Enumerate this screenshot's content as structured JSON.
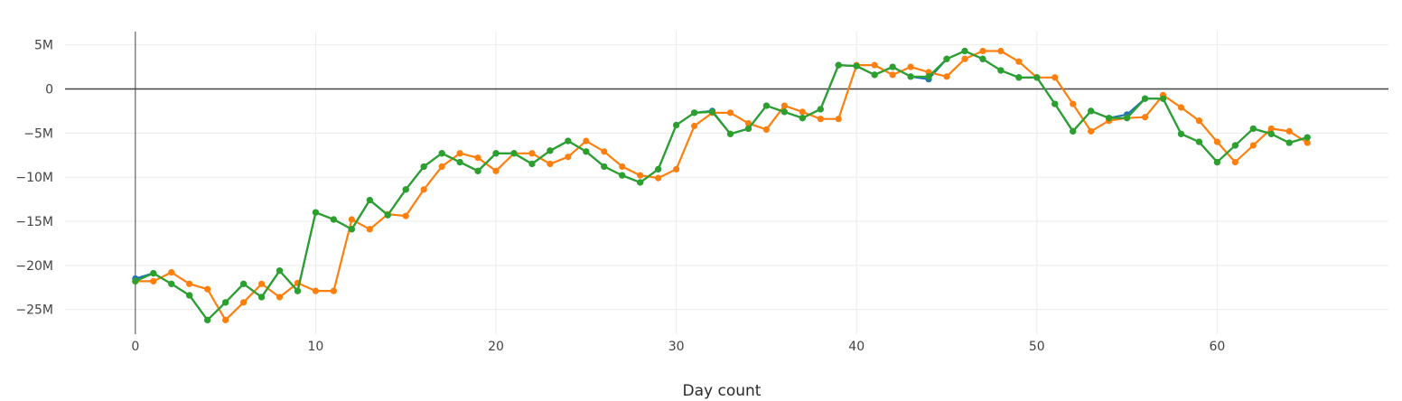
{
  "chart_data": {
    "type": "line",
    "title": "",
    "xlabel": "Day count",
    "ylabel": "",
    "xlim": [
      -3.9,
      69.5
    ],
    "ylim": [
      -27.8,
      6.5
    ],
    "x_ticks": [
      0,
      10,
      20,
      30,
      40,
      50,
      60
    ],
    "y_ticks": [
      5,
      0,
      -5,
      -10,
      -15,
      -20,
      -25
    ],
    "y_tick_labels": [
      "5M",
      "0",
      "−5M",
      "−10M",
      "−15M",
      "−20M",
      "−25M"
    ],
    "grid": true,
    "legend": "none",
    "series": [
      {
        "color": "#1f77b4",
        "x": [
          0,
          1,
          2,
          3,
          4,
          5,
          6,
          7,
          8,
          9,
          10,
          11,
          12,
          13,
          14,
          15,
          16,
          17,
          18,
          19,
          20,
          21,
          22,
          23,
          24,
          25,
          26,
          27,
          28,
          29,
          30,
          31,
          32,
          33,
          34,
          35,
          36,
          37,
          38,
          39,
          40,
          41,
          42,
          43,
          44,
          45,
          46,
          47,
          48,
          49,
          50,
          51,
          52,
          53,
          54,
          55,
          56,
          57,
          58,
          59,
          60,
          61,
          62,
          63,
          64,
          65
        ],
        "y": [
          -21.5,
          -20.9,
          -22.1,
          -23.4,
          -26.2,
          -24.2,
          -22.1,
          -23.6,
          -20.6,
          -22.9,
          -14.0,
          -14.8,
          -15.9,
          -12.6,
          -14.3,
          -11.4,
          -8.8,
          -7.3,
          -8.3,
          -9.3,
          -7.3,
          -7.3,
          -8.5,
          -7.0,
          -5.9,
          -7.1,
          -8.8,
          -9.8,
          -10.6,
          -9.1,
          -4.1,
          -2.7,
          -2.5,
          -5.1,
          -4.5,
          -1.9,
          -2.6,
          -3.3,
          -2.3,
          2.7,
          2.6,
          1.6,
          2.5,
          1.4,
          1.1,
          3.4,
          4.3,
          3.4,
          2.1,
          1.3,
          1.3,
          -1.7,
          -4.8,
          -2.5,
          -3.3,
          -2.9,
          -1.1,
          -1.1,
          -5.1,
          -6.0,
          -8.3,
          -6.4,
          -4.5,
          -5.1,
          -6.1,
          -5.5
        ]
      },
      {
        "color": "#ff7f0e",
        "x": [
          0,
          1,
          2,
          3,
          4,
          5,
          6,
          7,
          8,
          9,
          10,
          11,
          12,
          13,
          14,
          15,
          16,
          17,
          18,
          19,
          20,
          21,
          22,
          23,
          24,
          25,
          26,
          27,
          28,
          29,
          30,
          31,
          32,
          33,
          34,
          35,
          36,
          37,
          38,
          39,
          40,
          41,
          42,
          43,
          44,
          45,
          46,
          47,
          48,
          49,
          50,
          51,
          52,
          53,
          54,
          55,
          56,
          57,
          58,
          59,
          60,
          61,
          62,
          63,
          64,
          65
        ],
        "y": [
          -21.8,
          -21.8,
          -20.8,
          -22.1,
          -22.7,
          -26.2,
          -24.2,
          -22.1,
          -23.6,
          -22.0,
          -22.9,
          -22.9,
          -14.8,
          -15.9,
          -14.2,
          -14.4,
          -11.4,
          -8.8,
          -7.3,
          -7.8,
          -9.3,
          -7.3,
          -7.3,
          -8.5,
          -7.7,
          -5.9,
          -7.1,
          -8.8,
          -9.8,
          -10.1,
          -9.1,
          -4.2,
          -2.7,
          -2.7,
          -3.9,
          -4.6,
          -1.9,
          -2.6,
          -3.4,
          -3.4,
          2.7,
          2.7,
          1.6,
          2.5,
          1.9,
          1.4,
          3.4,
          4.3,
          4.3,
          3.1,
          1.3,
          1.3,
          -1.7,
          -4.8,
          -3.6,
          -3.3,
          -3.2,
          -0.7,
          -2.1,
          -3.6,
          -6.0,
          -8.3,
          -6.4,
          -4.5,
          -4.8,
          -6.1
        ]
      },
      {
        "color": "#2ca02c",
        "x": [
          0,
          1,
          2,
          3,
          4,
          5,
          6,
          7,
          8,
          9,
          10,
          11,
          12,
          13,
          14,
          15,
          16,
          17,
          18,
          19,
          20,
          21,
          22,
          23,
          24,
          25,
          26,
          27,
          28,
          29,
          30,
          31,
          32,
          33,
          34,
          35,
          36,
          37,
          38,
          39,
          40,
          41,
          42,
          43,
          44,
          45,
          46,
          47,
          48,
          49,
          50,
          51,
          52,
          53,
          54,
          55,
          56,
          57,
          58,
          59,
          60,
          61,
          62,
          63,
          64,
          65
        ],
        "y": [
          -21.8,
          -20.9,
          -22.1,
          -23.4,
          -26.2,
          -24.2,
          -22.1,
          -23.6,
          -20.6,
          -22.9,
          -14.0,
          -14.8,
          -15.9,
          -12.6,
          -14.3,
          -11.4,
          -8.8,
          -7.3,
          -8.3,
          -9.3,
          -7.3,
          -7.3,
          -8.5,
          -7.0,
          -5.9,
          -7.1,
          -8.8,
          -9.8,
          -10.6,
          -9.1,
          -4.1,
          -2.7,
          -2.6,
          -5.1,
          -4.5,
          -1.9,
          -2.6,
          -3.3,
          -2.3,
          2.7,
          2.6,
          1.6,
          2.5,
          1.4,
          1.4,
          3.4,
          4.3,
          3.4,
          2.1,
          1.3,
          1.3,
          -1.7,
          -4.8,
          -2.5,
          -3.3,
          -3.3,
          -1.1,
          -1.1,
          -5.1,
          -6.0,
          -8.3,
          -6.4,
          -4.5,
          -5.1,
          -6.1,
          -5.5
        ]
      }
    ]
  }
}
